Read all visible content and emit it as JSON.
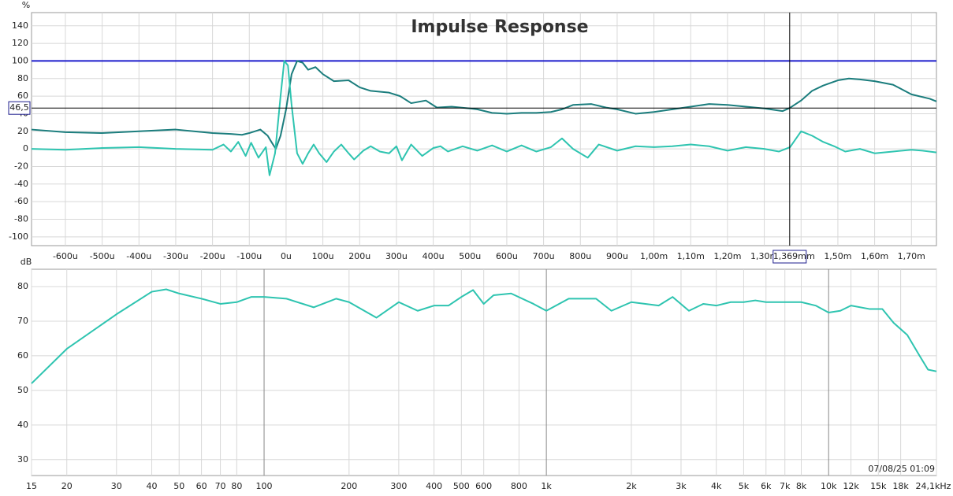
{
  "chart_data": [
    {
      "type": "line",
      "title": "Impulse Response",
      "ylabel": "%",
      "xlim": [
        -692,
        1768
      ],
      "ylim": [
        -110,
        155
      ],
      "xlog": false,
      "grid": true,
      "xticks": [
        {
          "value": -600,
          "label": "-600u"
        },
        {
          "value": -500,
          "label": "-500u"
        },
        {
          "value": -400,
          "label": "-400u"
        },
        {
          "value": -300,
          "label": "-300u"
        },
        {
          "value": -200,
          "label": "-200u"
        },
        {
          "value": -100,
          "label": "-100u"
        },
        {
          "value": 0,
          "label": "0u"
        },
        {
          "value": 100,
          "label": "100u"
        },
        {
          "value": 200,
          "label": "200u"
        },
        {
          "value": 300,
          "label": "300u"
        },
        {
          "value": 400,
          "label": "400u"
        },
        {
          "value": 500,
          "label": "500u"
        },
        {
          "value": 600,
          "label": "600u"
        },
        {
          "value": 700,
          "label": "700u"
        },
        {
          "value": 800,
          "label": "800u"
        },
        {
          "value": 900,
          "label": "900u"
        },
        {
          "value": 1000,
          "label": "1,00m"
        },
        {
          "value": 1100,
          "label": "1,10m"
        },
        {
          "value": 1200,
          "label": "1,20m"
        },
        {
          "value": 1300,
          "label": "1,30m"
        },
        {
          "value": 1400,
          "label": "1,40m"
        },
        {
          "value": 1500,
          "label": "1,50m"
        },
        {
          "value": 1600,
          "label": "1,60m"
        },
        {
          "value": 1700,
          "label": "1,70m"
        }
      ],
      "yticks": [
        -100,
        -80,
        -60,
        -40,
        -20,
        0,
        20,
        40,
        60,
        80,
        100,
        120,
        140
      ],
      "reference_line": {
        "value": 100,
        "color": "#1c1ccc"
      },
      "cursor": {
        "x": {
          "value": 1369,
          "label": "1,369m"
        },
        "y": {
          "value": 46.5,
          "label": "46,5"
        }
      },
      "series": [
        {
          "color": "#1b7d7d",
          "x": [
            -692,
            -600,
            -500,
            -400,
            -300,
            -200,
            -150,
            -120,
            -100,
            -70,
            -50,
            -40,
            -28,
            -15,
            0,
            15,
            30,
            45,
            60,
            80,
            100,
            130,
            170,
            200,
            230,
            280,
            310,
            340,
            380,
            410,
            450,
            500,
            520,
            560,
            600,
            640,
            680,
            720,
            750,
            780,
            830,
            870,
            900,
            950,
            1000,
            1050,
            1100,
            1150,
            1200,
            1250,
            1300,
            1350,
            1369,
            1400,
            1430,
            1460,
            1500,
            1530,
            1560,
            1600,
            1650,
            1700,
            1750,
            1768
          ],
          "values": [
            22,
            19,
            18,
            20,
            22,
            18,
            17,
            16,
            18,
            22,
            15,
            8,
            0,
            15,
            45,
            85,
            100,
            98,
            90,
            93,
            85,
            77,
            78,
            70,
            66,
            64,
            60,
            52,
            55,
            47,
            48,
            46,
            45,
            41,
            40,
            41,
            41,
            42,
            45,
            50,
            51,
            47,
            45,
            40,
            42,
            45,
            48,
            51,
            50,
            48,
            46,
            43,
            46.5,
            55,
            66,
            72,
            78,
            80,
            79,
            77,
            73,
            62,
            57,
            54
          ]
        },
        {
          "color": "#2ec4b0",
          "x": [
            -692,
            -600,
            -500,
            -400,
            -300,
            -200,
            -170,
            -150,
            -130,
            -110,
            -95,
            -75,
            -55,
            -45,
            -30,
            -15,
            -5,
            5,
            15,
            30,
            45,
            60,
            75,
            90,
            110,
            130,
            150,
            170,
            185,
            210,
            230,
            255,
            280,
            300,
            315,
            340,
            370,
            400,
            420,
            440,
            480,
            520,
            560,
            600,
            640,
            680,
            720,
            750,
            780,
            800,
            820,
            850,
            900,
            950,
            1000,
            1050,
            1100,
            1150,
            1200,
            1250,
            1300,
            1340,
            1370,
            1400,
            1430,
            1460,
            1490,
            1520,
            1560,
            1600,
            1650,
            1700,
            1730,
            1768
          ],
          "values": [
            0,
            -1,
            1,
            2,
            0,
            -1,
            5,
            -3,
            8,
            -8,
            7,
            -10,
            2,
            -30,
            -5,
            60,
            100,
            95,
            50,
            -5,
            -17,
            -5,
            5,
            -5,
            -15,
            -3,
            5,
            -5,
            -12,
            -2,
            3,
            -3,
            -5,
            3,
            -13,
            5,
            -8,
            1,
            3,
            -3,
            3,
            -2,
            4,
            -3,
            4,
            -3,
            2,
            12,
            0,
            -5,
            -10,
            5,
            -2,
            3,
            2,
            3,
            5,
            3,
            -2,
            2,
            0,
            -3,
            2,
            20,
            15,
            8,
            3,
            -3,
            0,
            -5,
            -3,
            -1,
            -2,
            -4
          ]
        }
      ]
    },
    {
      "type": "line",
      "ylabel": "dB",
      "annotation": "07/08/25 01:09",
      "xlim": [
        15,
        24100
      ],
      "ylim": [
        25.4,
        85
      ],
      "xlog": true,
      "grid": true,
      "xticks": [
        15,
        20,
        30,
        40,
        50,
        60,
        70,
        80,
        100,
        200,
        300,
        400,
        500,
        600,
        800,
        {
          "value": 1000,
          "label": "1k"
        },
        {
          "value": 2000,
          "label": "2k"
        },
        {
          "value": 3000,
          "label": "3k"
        },
        {
          "value": 4000,
          "label": "4k"
        },
        {
          "value": 5000,
          "label": "5k"
        },
        {
          "value": 6000,
          "label": "6k"
        },
        {
          "value": 7000,
          "label": "7k"
        },
        {
          "value": 8000,
          "label": "8k"
        },
        {
          "value": 10000,
          "label": "10k"
        },
        {
          "value": 12000,
          "label": "12k"
        },
        {
          "value": 15000,
          "label": "15k"
        },
        {
          "value": 18000,
          "label": "18k"
        },
        {
          "value": 24100,
          "label": "24,1kHz"
        }
      ],
      "yticks": [
        30,
        40,
        50,
        60,
        70,
        80
      ],
      "series": [
        {
          "color": "#2ec4b0",
          "x": [
            15,
            20,
            30,
            40,
            45,
            50,
            60,
            70,
            80,
            90,
            100,
            120,
            150,
            180,
            200,
            250,
            300,
            350,
            400,
            450,
            500,
            550,
            600,
            650,
            750,
            900,
            1000,
            1200,
            1500,
            1700,
            2000,
            2500,
            2800,
            3200,
            3600,
            4000,
            4500,
            5000,
            5500,
            6000,
            7000,
            8000,
            9000,
            10000,
            11000,
            12000,
            14000,
            15500,
            17000,
            19000,
            21000,
            22500,
            24100
          ],
          "values": [
            52,
            62,
            72,
            78.5,
            79.2,
            78,
            76.5,
            75,
            75.5,
            77,
            77,
            76.5,
            74,
            76.5,
            75.5,
            71,
            75.5,
            73,
            74.5,
            74.5,
            77,
            79,
            75,
            77.5,
            78,
            75,
            73,
            76.5,
            76.5,
            73,
            75.5,
            74.5,
            77,
            73,
            75,
            74.5,
            75.5,
            75.5,
            76,
            75.5,
            75.5,
            75.5,
            74.5,
            72.5,
            73,
            74.5,
            73.5,
            73.5,
            69.5,
            66,
            60,
            56,
            55.5
          ]
        }
      ]
    }
  ]
}
